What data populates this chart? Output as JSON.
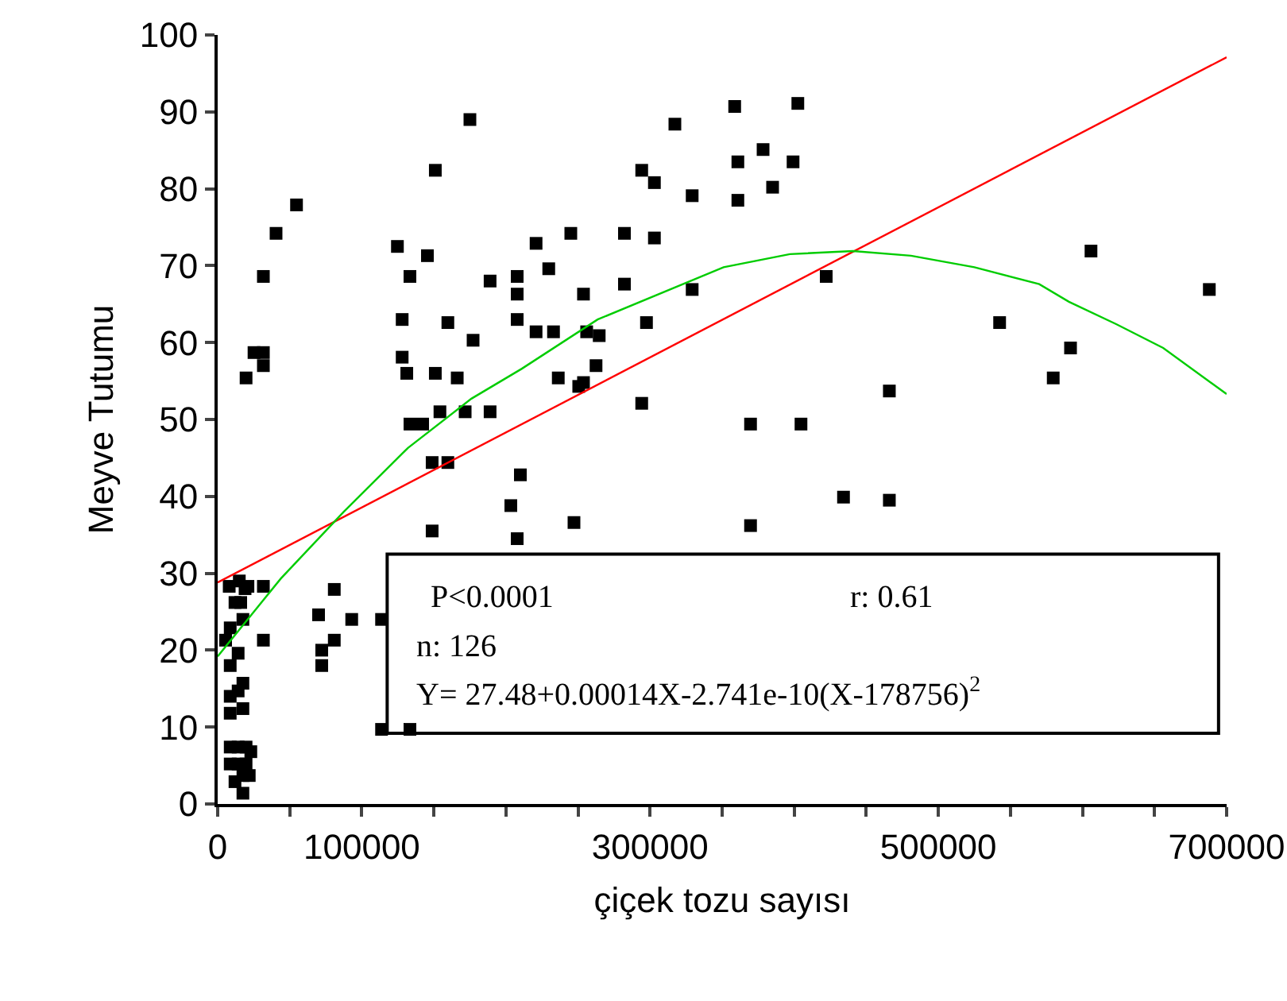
{
  "chart_data": {
    "type": "scatter",
    "xlabel": "çiçek tozu sayısı",
    "ylabel": "Meyve Tutumu",
    "xlim": [
      0,
      700000
    ],
    "ylim": [
      0,
      100
    ],
    "xticks": [
      0,
      {
        "value": 50000,
        "label": null
      },
      100000,
      {
        "value": 150000,
        "label": null
      },
      {
        "value": 200000,
        "label": null
      },
      {
        "value": 250000,
        "label": null
      },
      300000,
      {
        "value": 350000,
        "label": null
      },
      {
        "value": 400000,
        "label": null
      },
      {
        "value": 450000,
        "label": null
      },
      500000,
      {
        "value": 550000,
        "label": null
      },
      {
        "value": 600000,
        "label": null
      },
      {
        "value": 650000,
        "label": null
      },
      700000
    ],
    "yticks": [
      0,
      10,
      20,
      30,
      40,
      50,
      60,
      70,
      80,
      90,
      100
    ],
    "grid": false,
    "annotations": [
      "P<0.0001",
      "r: 0.61",
      "n: 126",
      "Y= 27.48+0.00014X-2.741e-10(X-178756)$^{2}$"
    ],
    "series": [
      {
        "type": "scatter",
        "color": "#000000",
        "marker": "square",
        "x": [
          175000,
          151000,
          54700,
          40500,
          31700,
          124700,
          145500,
          133400,
          189000,
          207800,
          207800,
          207800,
          128000,
          159700,
          177200,
          128000,
          131200,
          151000,
          166200,
          19700,
          25200,
          31700,
          31700,
          133400,
          142200,
          154200,
          171700,
          189000,
          148800,
          159700,
          210000,
          203400,
          148800,
          207800,
          31700,
          70000,
          80900,
          93000,
          113700,
          72200,
          80900,
          72200,
          31700,
          113700,
          133400,
          8000,
          15000,
          19000,
          21000,
          12000,
          16000,
          17500,
          8700,
          5500,
          14200,
          8700,
          17500,
          14200,
          8700,
          17500,
          8700,
          8700,
          14200,
          19700,
          23000,
          8700,
          14200,
          19700,
          17500,
          12000,
          21900,
          17500,
          358700,
          402500,
          317200,
          378400,
          360900,
          399200,
          294200,
          303000,
          385000,
          329200,
          360900,
          220900,
          245000,
          282200,
          303000,
          229700,
          253800,
          282200,
          329200,
          422200,
          220900,
          233000,
          256000,
          264700,
          297500,
          262500,
          236300,
          253800,
          250500,
          294200,
          369700,
          404700,
          247200,
          369700,
          434200,
          605900,
          688000,
          542500,
          591700,
          579700,
          466000,
          466000
        ],
        "values": [
          89.0,
          82.4,
          77.9,
          74.2,
          68.6,
          72.5,
          71.3,
          68.6,
          68.0,
          68.6,
          66.3,
          63.0,
          63.0,
          62.6,
          60.3,
          58.1,
          56.0,
          56.0,
          55.4,
          55.4,
          58.7,
          58.7,
          57.0,
          49.4,
          49.4,
          51.0,
          51.0,
          51.0,
          44.4,
          44.4,
          42.8,
          38.8,
          35.5,
          34.5,
          28.3,
          24.6,
          27.9,
          24.0,
          24.0,
          20.0,
          21.3,
          18.0,
          21.3,
          9.7,
          9.7,
          28.3,
          29.0,
          28.0,
          28.3,
          26.2,
          26.2,
          24.0,
          22.9,
          21.3,
          19.6,
          18.0,
          15.7,
          14.7,
          14.0,
          12.4,
          11.8,
          7.4,
          7.4,
          7.4,
          6.8,
          5.2,
          5.2,
          5.2,
          3.7,
          2.9,
          3.7,
          1.4,
          90.7,
          91.1,
          88.4,
          85.1,
          83.5,
          83.5,
          82.4,
          80.8,
          80.2,
          79.1,
          78.5,
          72.9,
          74.2,
          74.2,
          73.6,
          69.6,
          66.3,
          67.6,
          66.9,
          68.6,
          61.4,
          61.4,
          61.4,
          60.9,
          62.6,
          57.0,
          55.4,
          54.8,
          54.3,
          52.1,
          49.4,
          49.4,
          36.6,
          36.2,
          39.9,
          71.9,
          66.9,
          62.6,
          59.3,
          55.4,
          53.7,
          39.5
        ]
      },
      {
        "type": "line",
        "color": "#ff0000",
        "marker": "none",
        "line_style": "solid",
        "x": [
          0,
          700000
        ],
        "values": [
          28.8,
          97.1
        ]
      },
      {
        "type": "line",
        "color": "#00cc00",
        "marker": "none",
        "line_style": "solid",
        "x": [
          0,
          43750,
          87500,
          132000,
          176000,
          211000,
          263600,
          351000,
          397000,
          440800,
          481000,
          525000,
          570000,
          590600,
          623400,
          656000,
          700000
        ],
        "values": [
          19.2,
          29.3,
          38.0,
          46.3,
          52.7,
          56.6,
          63.0,
          69.8,
          71.5,
          71.9,
          71.3,
          69.8,
          67.6,
          65.3,
          62.4,
          59.3,
          53.3
        ]
      }
    ]
  }
}
